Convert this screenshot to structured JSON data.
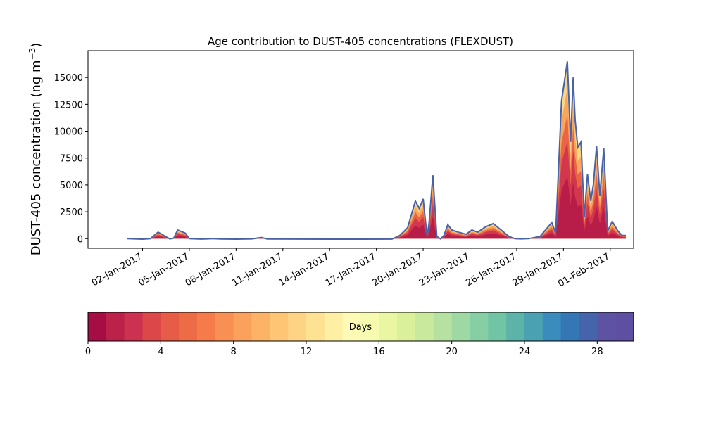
{
  "chart_data": {
    "type": "area",
    "title": "Age contribution to DUST-405 concentrations (FLEXDUST)",
    "ylabel": "DUST-405 concentration (ng m",
    "ylabel_sup": "−3",
    "ylabel_close": ")",
    "ylim": [
      -900,
      17500
    ],
    "yticks": [
      0,
      2500,
      5000,
      7500,
      10000,
      12500,
      15000
    ],
    "ytick_labels": [
      "0",
      "2500",
      "5000",
      "7500",
      "10000",
      "12500",
      "15000"
    ],
    "xlim": [
      "2016-12-29T12:00",
      "2017-02-02T12:00"
    ],
    "xticks": [
      "2017-01-02",
      "2017-01-05",
      "2017-01-08",
      "2017-01-11",
      "2017-01-14",
      "2017-01-17",
      "2017-01-20",
      "2017-01-23",
      "2017-01-26",
      "2017-01-29",
      "2017-02-01"
    ],
    "xtick_labels": [
      "02-Jan-2017",
      "05-Jan-2017",
      "08-Jan-2017",
      "11-Jan-2017",
      "14-Jan-2017",
      "17-Jan-2017",
      "20-Jan-2017",
      "23-Jan-2017",
      "26-Jan-2017",
      "29-Jan-2017",
      "01-Feb-2017"
    ],
    "total_line_color": "#4a62a6",
    "total_series": {
      "x": [
        "2017-01-01T00:00",
        "2017-01-02T00:00",
        "2017-01-02T12:00",
        "2017-01-03T00:00",
        "2017-01-03T18:00",
        "2017-01-04T00:00",
        "2017-01-04T06:00",
        "2017-01-04T18:00",
        "2017-01-05T00:00",
        "2017-01-05T18:00",
        "2017-01-06T03:00",
        "2017-01-06T12:00",
        "2017-01-07T00:00",
        "2017-01-08T00:00",
        "2017-01-09T00:00",
        "2017-01-09T15:00",
        "2017-01-10T00:00",
        "2017-01-12T00:00",
        "2017-01-14T00:00",
        "2017-01-16T00:00",
        "2017-01-18T00:00",
        "2017-01-18T12:00",
        "2017-01-19T00:00",
        "2017-01-19T12:00",
        "2017-01-19T18:00",
        "2017-01-20T00:00",
        "2017-01-20T06:00",
        "2017-01-20T09:00",
        "2017-01-20T15:00",
        "2017-01-20T21:00",
        "2017-01-21T03:00",
        "2017-01-21T08:00",
        "2017-01-21T14:00",
        "2017-01-21T20:00",
        "2017-01-22T06:00",
        "2017-01-22T18:00",
        "2017-01-23T03:00",
        "2017-01-23T12:00",
        "2017-01-24T00:00",
        "2017-01-24T12:00",
        "2017-01-25T00:00",
        "2017-01-25T12:00",
        "2017-01-25T21:00",
        "2017-01-26T06:00",
        "2017-01-26T18:00",
        "2017-01-27T12:00",
        "2017-01-28T06:00",
        "2017-01-28T12:00",
        "2017-01-28T21:00",
        "2017-01-29T06:00",
        "2017-01-29T11:00",
        "2017-01-29T15:00",
        "2017-01-29T18:00",
        "2017-01-29T22:00",
        "2017-01-30T03:00",
        "2017-01-30T08:00",
        "2017-01-30T13:00",
        "2017-01-30T18:00",
        "2017-01-30T22:00",
        "2017-01-31T03:00",
        "2017-01-31T08:00",
        "2017-01-31T14:00",
        "2017-01-31T20:00",
        "2017-02-01T03:00",
        "2017-02-01T12:00",
        "2017-02-01T18:00",
        "2017-02-02T00:00"
      ],
      "values": [
        0,
        -50,
        0,
        600,
        -30,
        50,
        800,
        500,
        0,
        -40,
        -20,
        0,
        -30,
        -50,
        -20,
        100,
        -30,
        -40,
        -50,
        -50,
        -40,
        300,
        1000,
        3500,
        2800,
        3700,
        200,
        1400,
        5900,
        200,
        -30,
        300,
        1300,
        800,
        600,
        400,
        800,
        600,
        1100,
        1400,
        800,
        200,
        0,
        -20,
        0,
        200,
        1500,
        500,
        12800,
        16500,
        9000,
        15000,
        11000,
        8500,
        9000,
        2000,
        6000,
        3500,
        5000,
        8600,
        4000,
        8400,
        700,
        1600,
        700,
        300,
        300
      ]
    },
    "colorbar": {
      "label": "Days",
      "range": [
        0,
        30
      ],
      "ticks": [
        0,
        4,
        8,
        12,
        16,
        20,
        24,
        28
      ],
      "tick_labels": [
        "0",
        "4",
        "8",
        "12",
        "16",
        "20",
        "24",
        "28"
      ],
      "colors": [
        "#a50d44",
        "#bb2149",
        "#cc3150",
        "#dc474a",
        "#e65c47",
        "#ed6c45",
        "#f57c4a",
        "#f88f53",
        "#fba15e",
        "#fdb366",
        "#fec674",
        "#fed484",
        "#fde294",
        "#fdf0a5",
        "#fefbb6",
        "#f6fbb0",
        "#e9f6a2",
        "#daf09a",
        "#c9e99d",
        "#b6e1a1",
        "#9ed8a3",
        "#86cfa4",
        "#72c5a4",
        "#5db3a8",
        "#4aa1b1",
        "#3a8cbc",
        "#3577b5",
        "#4664ab",
        "#5e52a2",
        "#5e4fa2"
      ]
    }
  }
}
